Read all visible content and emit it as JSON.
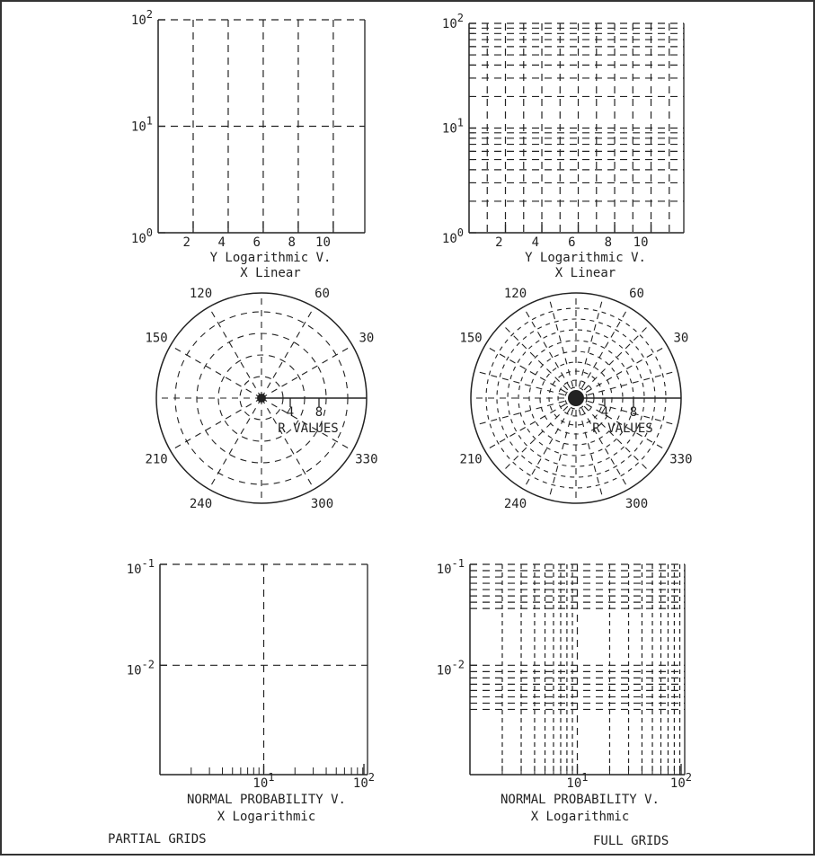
{
  "style": {
    "ink": "#222222",
    "background": "#ffffff",
    "border": "#333333"
  },
  "footer": {
    "left": "PARTIAL GRIDS",
    "right": "FULL GRIDS"
  },
  "chart_data": [
    {
      "id": "loglin-partial",
      "type": "line",
      "grid_mode": "partial",
      "title_lines": [
        "Y Logarithmic  V.",
        "X Linear"
      ],
      "xticks": [
        "2",
        "4",
        "6",
        "8",
        "10"
      ],
      "yticks": [
        {
          "base": "10",
          "exp": "0"
        },
        {
          "base": "10",
          "exp": "1"
        },
        {
          "base": "10",
          "exp": "2"
        }
      ],
      "x_scale": "linear",
      "y_scale": "log",
      "xlim": [
        0,
        11.8
      ],
      "ylim": [
        1,
        100
      ],
      "grid": true
    },
    {
      "id": "loglin-full",
      "type": "line",
      "grid_mode": "full",
      "title_lines": [
        "Y Logarithmic  V.",
        "X Linear"
      ],
      "xticks": [
        "2",
        "4",
        "6",
        "8",
        "10"
      ],
      "yticks": [
        {
          "base": "10",
          "exp": "0"
        },
        {
          "base": "10",
          "exp": "1"
        },
        {
          "base": "10",
          "exp": "2"
        }
      ],
      "x_scale": "linear",
      "y_scale": "log",
      "xlim": [
        0,
        11.8
      ],
      "ylim": [
        1,
        100
      ],
      "grid": true
    },
    {
      "id": "polar-partial",
      "type": "polar",
      "grid_mode": "partial",
      "angle_labels": [
        "30",
        "60",
        "120",
        "150",
        "210",
        "240",
        "300",
        "330"
      ],
      "r_labels": [
        "4",
        "8"
      ],
      "r_axis_label": "R VALUES",
      "grid": true
    },
    {
      "id": "polar-full",
      "type": "polar",
      "grid_mode": "full",
      "angle_labels": [
        "30",
        "60",
        "120",
        "150",
        "210",
        "240",
        "300",
        "330"
      ],
      "r_labels": [
        "4",
        "8"
      ],
      "r_axis_label": "R VALUES",
      "grid": true
    },
    {
      "id": "prob-partial",
      "type": "line",
      "grid_mode": "partial",
      "title_lines": [
        "NORMAL PROBABILITY  V.",
        "X Logarithmic"
      ],
      "xticks": [
        {
          "base": "10",
          "exp": "1"
        },
        {
          "base": "10",
          "exp": "2"
        }
      ],
      "yticks": [
        {
          "base": "10",
          "exp": "-1"
        },
        {
          "base": "10",
          "exp": "-2"
        }
      ],
      "x_scale": "log",
      "y_scale": "log",
      "grid": true
    },
    {
      "id": "prob-full",
      "type": "line",
      "grid_mode": "full",
      "title_lines": [
        "NORMAL PROBABILITY  V.",
        "X Logarithmic"
      ],
      "xticks": [
        {
          "base": "10",
          "exp": "1"
        },
        {
          "base": "10",
          "exp": "2"
        }
      ],
      "yticks": [
        {
          "base": "10",
          "exp": "-1"
        },
        {
          "base": "10",
          "exp": "-2"
        }
      ],
      "x_scale": "log",
      "y_scale": "log",
      "grid": true
    }
  ]
}
